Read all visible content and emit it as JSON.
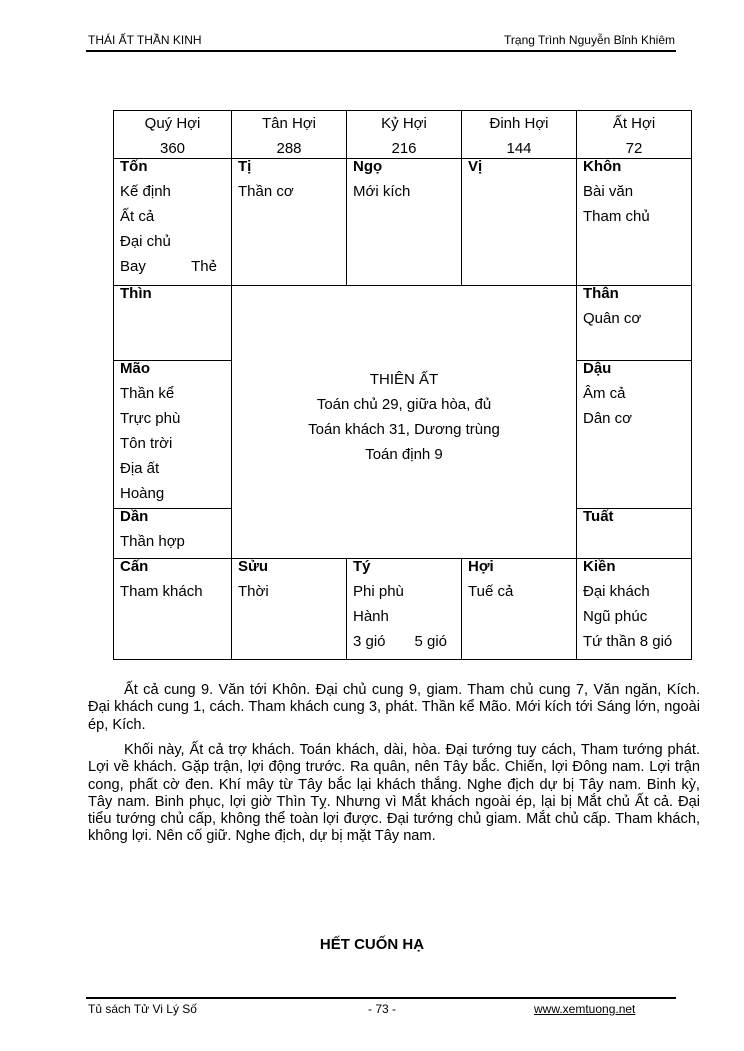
{
  "header": {
    "left": "THÁI ẤT THẦN KINH",
    "right": "Trạng Trình Nguyễn Bỉnh Khiêm"
  },
  "table": {
    "head": [
      {
        "name": "Quý Hợi",
        "value": "360"
      },
      {
        "name": "Tân Hợi",
        "value": "288"
      },
      {
        "name": "Kỷ Hợi",
        "value": "216"
      },
      {
        "name": "Đinh Hợi",
        "value": "144"
      },
      {
        "name": "Ất Hợi",
        "value": "72"
      }
    ],
    "cells": {
      "ton": {
        "name": "Tốn",
        "lines": [
          "Kế định",
          "Ất cả",
          "Đại chủ",
          [
            "Bay",
            "Thẻ"
          ]
        ]
      },
      "ti": {
        "name": "Tị",
        "lines": [
          "Thần cơ"
        ]
      },
      "ngo": {
        "name": "Ngọ",
        "lines": [
          "Mới kích"
        ]
      },
      "vi": {
        "name": "Vị",
        "lines": []
      },
      "khon": {
        "name": "Khôn",
        "lines": [
          "Bài văn",
          "Tham chủ"
        ]
      },
      "thin": {
        "name": "Thìn",
        "lines": []
      },
      "than": {
        "name": "Thân",
        "lines": [
          "Quân cơ"
        ]
      },
      "mao": {
        "name": "Mão",
        "lines": [
          "Thần kể",
          "Trực phù",
          "Tôn trời",
          "Địa ất",
          "Hoàng"
        ]
      },
      "dau": {
        "name": "Dậu",
        "lines": [
          "Âm cả",
          "Dân cơ"
        ]
      },
      "dan": {
        "name": "Dần",
        "lines": [
          "Thần hợp"
        ]
      },
      "tuat": {
        "name": "Tuất",
        "lines": []
      },
      "can": {
        "name": "Cấn",
        "lines": [
          "Tham khách"
        ]
      },
      "suu": {
        "name": "Sửu",
        "lines": [
          "Thời"
        ]
      },
      "ty": {
        "name": "Tý",
        "lines": [
          "Phi phù",
          "Hành",
          [
            "3 gió",
            "5 gió"
          ]
        ]
      },
      "hoi": {
        "name": "Hợi",
        "lines": [
          "Tuế cả"
        ]
      },
      "kien": {
        "name": "Kiền",
        "lines": [
          "Đại khách",
          "Ngũ phúc",
          "Tứ thần  8 gió"
        ]
      }
    },
    "center": [
      "THIÊN ẤT",
      "Toán chủ 29, giữa hòa, đủ",
      "Toán khách 31, Dương trùng",
      "Toán định 9"
    ]
  },
  "paragraphs": [
    "Ất cả cung 9. Văn tới Khôn. Đại chủ cung 9, giam. Tham chủ cung 7, Văn ngăn, Kích. Đại khách cung 1, cách. Tham khách cung 3, phát. Thần kể Mão. Mới kích tới Sáng lớn, ngoài ép, Kích.",
    "Khối này, Ất cả trợ khách. Toán khách, dài, hòa. Đại tướng tuy cách, Tham tướng phát. Lợi về khách. Gặp trận, lợi động trước. Ra quân, nên Tây bắc. Chiến, lợi Đông nam. Lợi trận cong, phất cờ đen. Khí mây từ Tây bắc lại khách thắng. Nghe địch dự bị Tây nam. Binh kỳ, Tây nam. Binh phục, lợi giờ Thìn Tỵ. Nhưng vì Mắt khách ngoài ép, lại bị Mắt chủ Ất cả. Đại tiểu tướng chủ cấp, không thể toàn lợi được. Đại tướng chủ giam. Mắt chủ cấp. Tham khách, không lợi. Nên cố giữ. Nghe địch, dự bị mặt Tây nam."
  ],
  "end_title": "HẾT CUỐN HẠ",
  "footer": {
    "left": "Tủ sách Tử Vi Lý Số",
    "page": "- 73 -",
    "link": "www.xemtuong.net"
  }
}
